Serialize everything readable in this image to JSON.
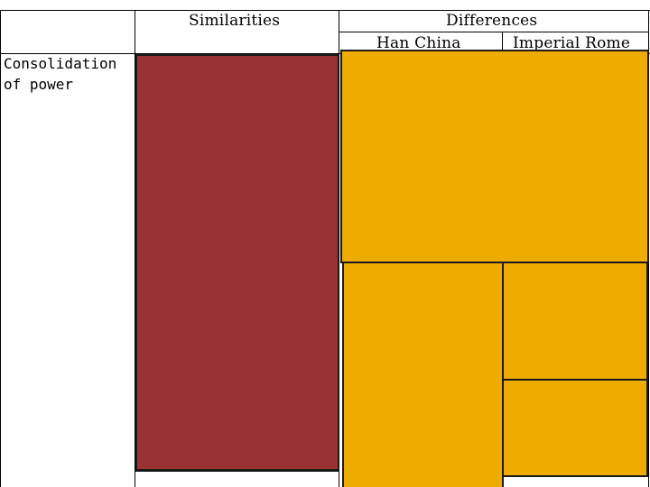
{
  "table": {
    "header_similarities": "Similarities",
    "header_differences": "Differences",
    "sub_header_left": "Han China",
    "sub_header_right": "Imperial Rome",
    "row_label_line1": "Consolidation",
    "row_label_line2": "of power"
  },
  "colors": {
    "similarities_fill": "#993333",
    "differences_fill": "#EFAC00",
    "grid_lines": "#000000",
    "background": "#FFFFFF"
  }
}
